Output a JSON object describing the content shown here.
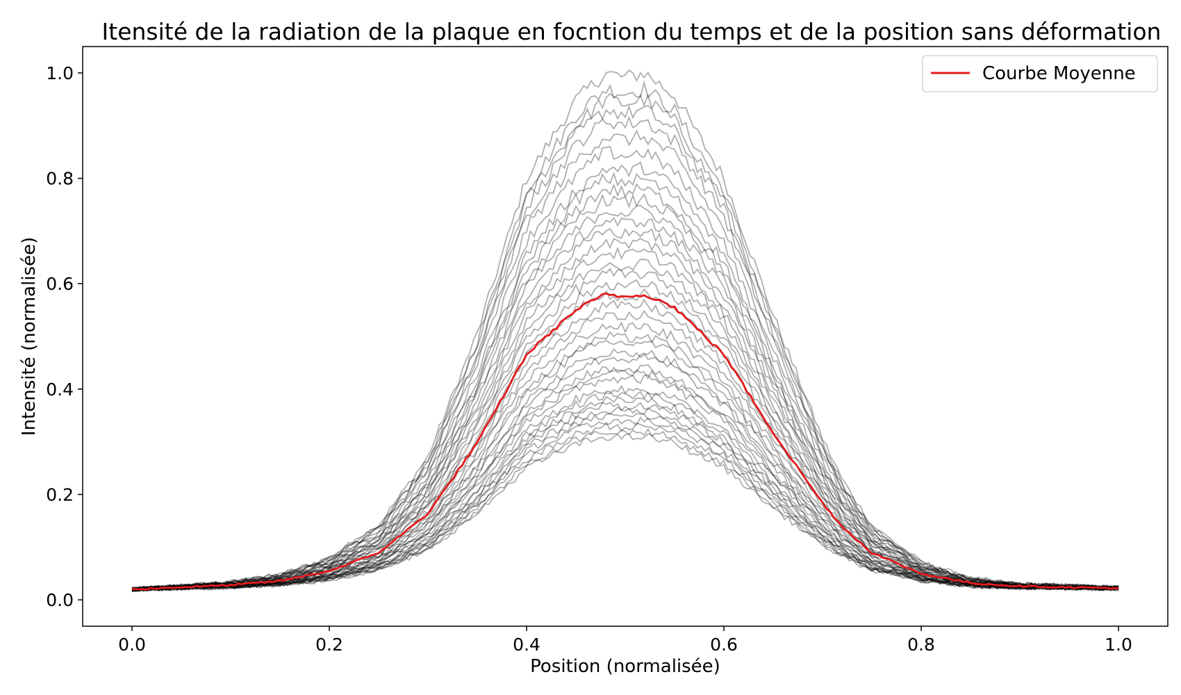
{
  "chart_data": {
    "type": "line",
    "title": "Itensité de la radiation de la plaque en focntion du temps et de la position sans déformation",
    "xlabel": "Position (normalisée)",
    "ylabel": "Intensité (normalisée)",
    "xlim": [
      -0.05,
      1.05
    ],
    "ylim": [
      -0.05,
      1.05
    ],
    "xticks": [
      0.0,
      0.2,
      0.4,
      0.6,
      0.8,
      1.0
    ],
    "xtick_labels": [
      "0.0",
      "0.2",
      "0.4",
      "0.6",
      "0.8",
      "1.0"
    ],
    "yticks": [
      0.0,
      0.2,
      0.4,
      0.6,
      0.8,
      1.0
    ],
    "ytick_labels": [
      "0.0",
      "0.2",
      "0.4",
      "0.6",
      "0.8",
      "1.0"
    ],
    "grid": false,
    "legend": {
      "placement": "top-right",
      "entries": [
        "Courbe Moyenne"
      ]
    },
    "profile": {
      "x": [
        0.0,
        0.05,
        0.1,
        0.15,
        0.2,
        0.25,
        0.3,
        0.35,
        0.4,
        0.45,
        0.48,
        0.5,
        0.52,
        0.55,
        0.6,
        0.65,
        0.7,
        0.72,
        0.75,
        0.8,
        0.85,
        0.9,
        0.95,
        1.0
      ],
      "peak_scaled": [
        0.02,
        0.024,
        0.028,
        0.036,
        0.055,
        0.09,
        0.165,
        0.3,
        0.47,
        0.555,
        0.585,
        0.58,
        0.585,
        0.56,
        0.47,
        0.32,
        0.185,
        0.14,
        0.09,
        0.05,
        0.032,
        0.026,
        0.024,
        0.022
      ],
      "baseline": 0.02
    },
    "series": [
      {
        "name": "Courbe Moyenne",
        "color": "#e41a1c",
        "peak": 0.58
      }
    ],
    "family": {
      "color": "#000000",
      "opacity": 0.32,
      "peaks": [
        1.0,
        0.97,
        0.95,
        0.93,
        0.91,
        0.88,
        0.85,
        0.82,
        0.8,
        0.78,
        0.76,
        0.74,
        0.72,
        0.7,
        0.68,
        0.66,
        0.64,
        0.62,
        0.6,
        0.58,
        0.56,
        0.54,
        0.52,
        0.5,
        0.49,
        0.47,
        0.46,
        0.44,
        0.43,
        0.42,
        0.4,
        0.39,
        0.38,
        0.37,
        0.36,
        0.35,
        0.34,
        0.33,
        0.32,
        0.31
      ]
    }
  }
}
